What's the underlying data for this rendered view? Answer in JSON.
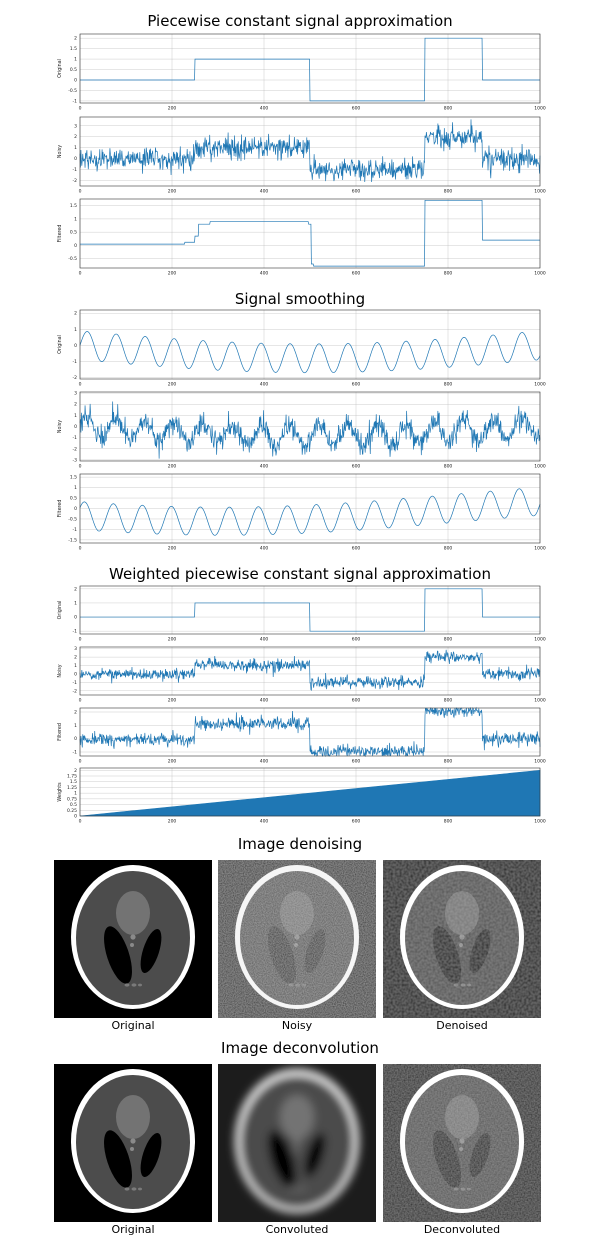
{
  "colors": {
    "trace": "#1f77b4",
    "background": "#ffffff"
  },
  "sections": [
    {
      "id": "piecewise",
      "title": "Piecewise constant signal approximation"
    },
    {
      "id": "smoothing",
      "title": "Signal smoothing"
    },
    {
      "id": "weighted",
      "title": "Weighted piecewise constant signal approximation"
    },
    {
      "id": "denoise",
      "title": "Image denoising"
    },
    {
      "id": "deconv",
      "title": "Image deconvolution"
    }
  ],
  "chart_data": [
    {
      "id": "pw-original",
      "type": "line",
      "ylabel": "Original",
      "xlim": [
        0,
        1000
      ],
      "ylim": [
        -1.1,
        2.2
      ],
      "xticks": [
        0,
        200,
        400,
        600,
        800,
        1000
      ],
      "yticks": [
        -1.0,
        -0.5,
        0.0,
        0.5,
        1.0,
        1.5,
        2.0
      ],
      "levels": [
        {
          "from": 0,
          "to": 250,
          "y": 0
        },
        {
          "from": 250,
          "to": 500,
          "y": 1
        },
        {
          "from": 500,
          "to": 750,
          "y": -1
        },
        {
          "from": 750,
          "to": 875,
          "y": 2
        },
        {
          "from": 875,
          "to": 1000,
          "y": 0
        }
      ]
    },
    {
      "id": "pw-noisy",
      "type": "line",
      "ylabel": "Noisy",
      "xlim": [
        0,
        1000
      ],
      "ylim": [
        -2.5,
        3.8
      ],
      "xticks": [
        0,
        200,
        400,
        600,
        800,
        1000
      ],
      "yticks": [
        -2,
        -1,
        0,
        1,
        2,
        3
      ],
      "levels": [
        {
          "from": 0,
          "to": 250,
          "y": 0
        },
        {
          "from": 250,
          "to": 500,
          "y": 1
        },
        {
          "from": 500,
          "to": 750,
          "y": -1
        },
        {
          "from": 750,
          "to": 875,
          "y": 2
        },
        {
          "from": 875,
          "to": 1000,
          "y": 0
        }
      ],
      "noise_std": 0.5
    },
    {
      "id": "pw-filtered",
      "type": "line",
      "ylabel": "Filtered",
      "xlim": [
        0,
        1000
      ],
      "ylim": [
        -0.85,
        1.75
      ],
      "xticks": [
        0,
        200,
        400,
        600,
        800,
        1000
      ],
      "yticks": [
        -0.5,
        0.0,
        0.5,
        1.0,
        1.5
      ],
      "levels": [
        {
          "from": 0,
          "to": 228,
          "y": 0.05
        },
        {
          "from": 228,
          "to": 250,
          "y": 0.12
        },
        {
          "from": 250,
          "to": 258,
          "y": 0.35
        },
        {
          "from": 258,
          "to": 283,
          "y": 0.8
        },
        {
          "from": 283,
          "to": 497,
          "y": 0.9
        },
        {
          "from": 497,
          "to": 503,
          "y": 0.8
        },
        {
          "from": 503,
          "to": 508,
          "y": -0.7
        },
        {
          "from": 508,
          "to": 750,
          "y": -0.78
        },
        {
          "from": 750,
          "to": 875,
          "y": 1.7
        },
        {
          "from": 875,
          "to": 1000,
          "y": 0.2
        }
      ]
    },
    {
      "id": "sm-original",
      "type": "line",
      "ylabel": "Original",
      "xlim": [
        0,
        1000
      ],
      "ylim": [
        -2.1,
        2.2
      ],
      "xticks": [
        0,
        200,
        400,
        600,
        800,
        1000
      ],
      "yticks": [
        -2,
        -1,
        0,
        1,
        2
      ],
      "wave": {
        "period": 63,
        "envelope_cycles": 1.0,
        "amp1": 1.0,
        "amp2": 1.0,
        "phase": 0
      }
    },
    {
      "id": "sm-noisy",
      "type": "line",
      "ylabel": "Noisy",
      "xlim": [
        0,
        1000
      ],
      "ylim": [
        -3.1,
        3.1
      ],
      "xticks": [
        0,
        200,
        400,
        600,
        800,
        1000
      ],
      "yticks": [
        -3,
        -2,
        -1,
        0,
        1,
        2,
        3
      ],
      "wave": {
        "period": 63,
        "envelope_cycles": 1.0,
        "amp1": 1.0,
        "amp2": 1.0,
        "phase": 0
      },
      "noise_std": 0.5
    },
    {
      "id": "sm-filtered",
      "type": "line",
      "ylabel": "Filtered",
      "xlim": [
        0,
        1000
      ],
      "ylim": [
        -1.65,
        1.65
      ],
      "xticks": [
        0,
        200,
        400,
        600,
        800,
        1000
      ],
      "yticks": [
        -1.5,
        -1.0,
        -0.5,
        0.0,
        0.5,
        1.0,
        1.5
      ],
      "wave": {
        "period": 63,
        "envelope_cycles": 1.0,
        "amp1": 0.75,
        "amp2": 0.75,
        "phase": 0.6
      }
    },
    {
      "id": "w-original",
      "type": "line",
      "ylabel": "Original",
      "xlim": [
        0,
        1000
      ],
      "ylim": [
        -1.2,
        2.2
      ],
      "xticks": [
        0,
        200,
        400,
        600,
        800,
        1000
      ],
      "yticks": [
        -1,
        0,
        1,
        2
      ],
      "levels": [
        {
          "from": 0,
          "to": 250,
          "y": 0
        },
        {
          "from": 250,
          "to": 500,
          "y": 1
        },
        {
          "from": 500,
          "to": 750,
          "y": -1
        },
        {
          "from": 750,
          "to": 875,
          "y": 2
        },
        {
          "from": 875,
          "to": 1000,
          "y": 0
        }
      ]
    },
    {
      "id": "w-noisy",
      "type": "line",
      "ylabel": "Noisy",
      "xlim": [
        0,
        1000
      ],
      "ylim": [
        -2.5,
        3.2
      ],
      "xticks": [
        0,
        200,
        400,
        600,
        800,
        1000
      ],
      "yticks": [
        -2,
        -1,
        0,
        1,
        2,
        3
      ],
      "levels": [
        {
          "from": 0,
          "to": 250,
          "y": 0
        },
        {
          "from": 250,
          "to": 500,
          "y": 1
        },
        {
          "from": 500,
          "to": 750,
          "y": -1
        },
        {
          "from": 750,
          "to": 875,
          "y": 2
        },
        {
          "from": 875,
          "to": 1000,
          "y": 0
        }
      ],
      "noise_std": 0.35
    },
    {
      "id": "w-filtered",
      "type": "line",
      "ylabel": "Filtered",
      "xlim": [
        0,
        1000
      ],
      "ylim": [
        -1.3,
        2.3
      ],
      "xticks": [
        0,
        200,
        400,
        600,
        800,
        1000
      ],
      "yticks": [
        -1,
        0,
        1,
        2
      ],
      "levels": [
        {
          "from": 0,
          "to": 250,
          "y": -0.1
        },
        {
          "from": 250,
          "to": 500,
          "y": 1.1
        },
        {
          "from": 500,
          "to": 750,
          "y": -0.95
        },
        {
          "from": 750,
          "to": 875,
          "y": 2.05
        },
        {
          "from": 875,
          "to": 1000,
          "y": 0.0
        }
      ],
      "noise_std": 0.25
    },
    {
      "id": "w-weights",
      "type": "area",
      "ylabel": "Weights",
      "xlim": [
        0,
        1000
      ],
      "ylim": [
        0,
        2.1
      ],
      "xticks": [
        0,
        200,
        400,
        600,
        800,
        1000
      ],
      "yticks": [
        0.0,
        0.25,
        0.5,
        0.75,
        1.0,
        1.25,
        1.5,
        1.75,
        2.0
      ],
      "x": [
        0,
        1000
      ],
      "y": [
        0,
        2
      ]
    }
  ],
  "image_rows": [
    {
      "id": "denoise",
      "panels": [
        {
          "id": "den-original",
          "caption": "Original",
          "style": "clean"
        },
        {
          "id": "den-noisy",
          "caption": "Noisy",
          "style": "noisy"
        },
        {
          "id": "den-denoised",
          "caption": "Denoised",
          "style": "denoised"
        }
      ]
    },
    {
      "id": "deconv",
      "panels": [
        {
          "id": "dec-original",
          "caption": "Original",
          "style": "clean"
        },
        {
          "id": "dec-convoluted",
          "caption": "Convoluted",
          "style": "blurred"
        },
        {
          "id": "dec-deconvoluted",
          "caption": "Deconvoluted",
          "style": "deconvoluted"
        }
      ]
    }
  ]
}
